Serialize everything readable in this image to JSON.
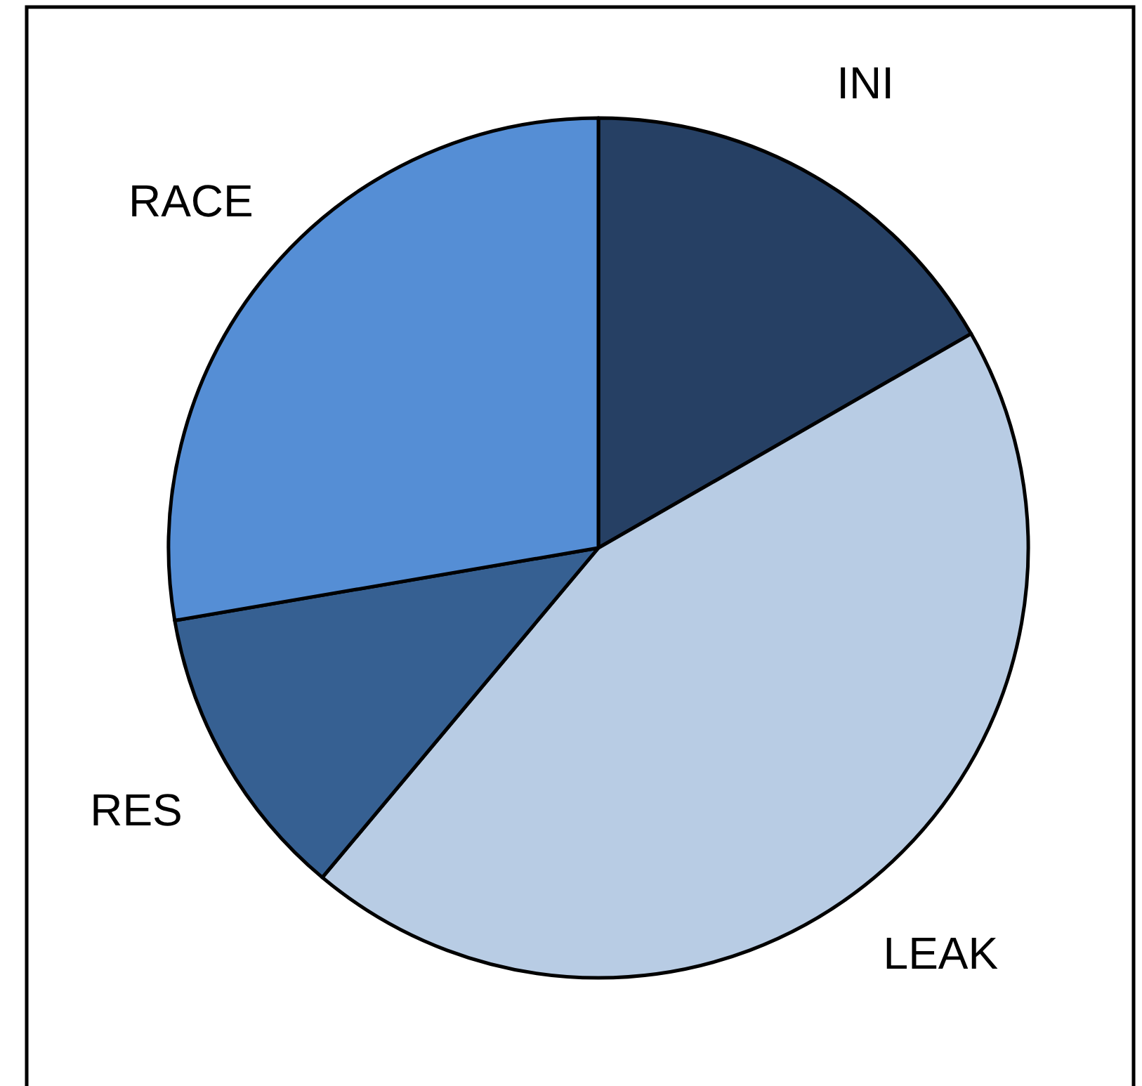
{
  "chart_data": {
    "type": "pie",
    "categories": [
      "INI",
      "LEAK",
      "RES",
      "RACE"
    ],
    "values": [
      16.7,
      44.4,
      11.2,
      27.7
    ],
    "colors": [
      "#264064",
      "#b8cce4",
      "#366092",
      "#558ed5"
    ]
  }
}
